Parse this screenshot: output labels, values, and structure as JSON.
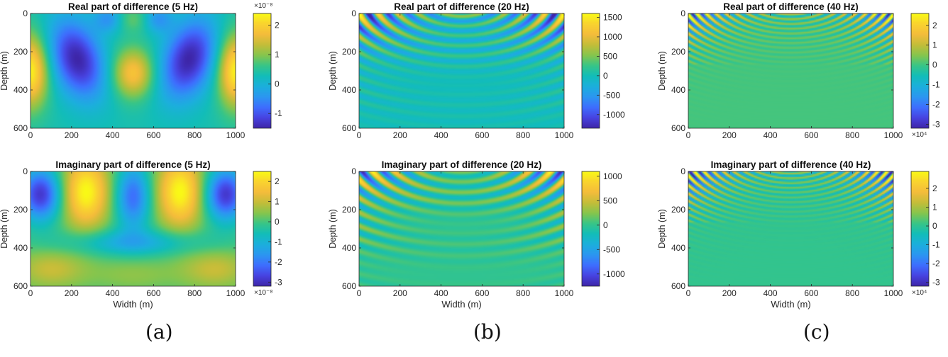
{
  "chart_data": [
    {
      "type": "heatmap",
      "column": 0,
      "row": 0,
      "pattern": "a_real",
      "title": "Real part of difference (5 Hz)",
      "xlabel": "",
      "ylabel": "Depth (m)",
      "xlim": [
        0,
        1000
      ],
      "ylim": [
        0,
        600
      ],
      "y_reversed": true,
      "xticks": [
        "0",
        "200",
        "400",
        "600",
        "800",
        "1000"
      ],
      "yticks": [
        "0",
        "200",
        "400",
        "600"
      ],
      "colorbar": {
        "ticks": [
          2,
          1,
          0,
          -1
        ],
        "labels": [
          "2",
          "1",
          "0",
          "-1"
        ],
        "range": [
          -1.5,
          2.4
        ],
        "exponent": "×10⁻⁸"
      }
    },
    {
      "type": "heatmap",
      "column": 0,
      "row": 1,
      "pattern": "a_imag",
      "title": "Imaginary part of difference (5 Hz)",
      "xlabel": "Width (m)",
      "ylabel": "Depth (m)",
      "xlim": [
        0,
        1000
      ],
      "ylim": [
        0,
        600
      ],
      "y_reversed": true,
      "xticks": [
        "0",
        "200",
        "400",
        "600",
        "800",
        "1000"
      ],
      "yticks": [
        "0",
        "200",
        "400",
        "600"
      ],
      "colorbar": {
        "ticks": [
          2,
          1,
          0,
          -1,
          -2,
          -3
        ],
        "labels": [
          "2",
          "1",
          "0",
          "-1",
          "-2",
          "-3"
        ],
        "range": [
          -3.2,
          2.5
        ],
        "exponent": "×10⁻⁸"
      }
    },
    {
      "type": "heatmap",
      "column": 1,
      "row": 0,
      "pattern": "b_real",
      "title": "Real part of difference (20 Hz)",
      "xlabel": "",
      "ylabel": "Depth (m)",
      "xlim": [
        0,
        1000
      ],
      "ylim": [
        0,
        600
      ],
      "y_reversed": true,
      "xticks": [
        "0",
        "200",
        "400",
        "600",
        "800",
        "1000"
      ],
      "yticks": [
        "0",
        "200",
        "400",
        "600"
      ],
      "colorbar": {
        "ticks": [
          1500,
          1000,
          500,
          0,
          -500,
          -1000
        ],
        "labels": [
          "1500",
          "1000",
          "500",
          "0",
          "-500",
          "-1000"
        ],
        "range": [
          -1350,
          1600
        ],
        "exponent": ""
      }
    },
    {
      "type": "heatmap",
      "column": 1,
      "row": 1,
      "pattern": "b_imag",
      "title": "Imaginary part of difference (20 Hz)",
      "xlabel": "Width (m)",
      "ylabel": "Depth (m)",
      "xlim": [
        0,
        1000
      ],
      "ylim": [
        0,
        600
      ],
      "y_reversed": true,
      "xticks": [
        "0",
        "200",
        "400",
        "600",
        "800",
        "1000"
      ],
      "yticks": [
        "0",
        "200",
        "400",
        "600"
      ],
      "colorbar": {
        "ticks": [
          1000,
          500,
          0,
          -500,
          -1000
        ],
        "labels": [
          "1000",
          "500",
          "0",
          "-500",
          "-1000"
        ],
        "range": [
          -1250,
          1100
        ],
        "exponent": ""
      }
    },
    {
      "type": "heatmap",
      "column": 2,
      "row": 0,
      "pattern": "c_real",
      "title": "Real part of difference (40 Hz)",
      "xlabel": "",
      "ylabel": "Depth (m)",
      "xlim": [
        0,
        1000
      ],
      "ylim": [
        0,
        600
      ],
      "y_reversed": true,
      "xticks": [
        "0",
        "200",
        "400",
        "600",
        "800",
        "1000"
      ],
      "yticks": [
        "0",
        "200",
        "400",
        "600"
      ],
      "colorbar": {
        "ticks": [
          2,
          1,
          0,
          -1,
          -2,
          -3
        ],
        "labels": [
          "2",
          "1",
          "0",
          "-1",
          "-2",
          "-3"
        ],
        "range": [
          -3.2,
          2.6
        ],
        "exponent": "×10⁴"
      }
    },
    {
      "type": "heatmap",
      "column": 2,
      "row": 1,
      "pattern": "c_imag",
      "title": "Imaginary part of difference (40 Hz)",
      "xlabel": "Width (m)",
      "ylabel": "Depth (m)",
      "xlim": [
        0,
        1000
      ],
      "ylim": [
        0,
        600
      ],
      "y_reversed": true,
      "xticks": [
        "0",
        "200",
        "400",
        "600",
        "800",
        "1000"
      ],
      "yticks": [
        "0",
        "200",
        "400",
        "600"
      ],
      "colorbar": {
        "ticks": [
          2,
          1,
          0,
          -1,
          -2,
          -3
        ],
        "labels": [
          "2",
          "1",
          "0",
          "-1",
          "-2",
          "-3"
        ],
        "range": [
          -3.2,
          2.9
        ],
        "exponent": "×10⁴"
      }
    }
  ],
  "captions": [
    "(a)",
    "(b)",
    "(c)"
  ],
  "colormap": [
    "#3e26a8",
    "#4743e0",
    "#3e6efe",
    "#2c96f1",
    "#1cafdd",
    "#12bdb9",
    "#38c587",
    "#86c54d",
    "#c4bd39",
    "#f4bc3b",
    "#f9d32f",
    "#f9fb15"
  ]
}
